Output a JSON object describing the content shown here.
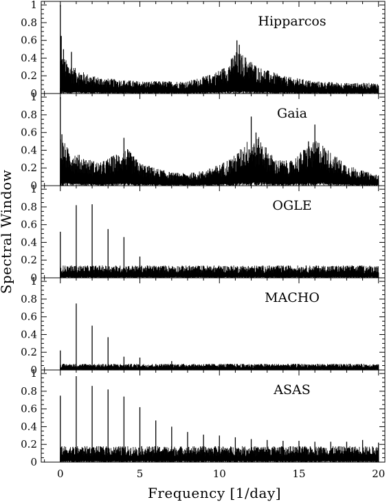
{
  "chart_data": {
    "type": "line",
    "xlabel": "Frequency [1/day]",
    "ylabel": "Spectral Window",
    "xlim": [
      -1.2,
      20.4
    ],
    "ylim": [
      0,
      1.04
    ],
    "x_ticks": [
      "0",
      "5",
      "10",
      "15",
      "20"
    ],
    "y_ticks": [
      "0",
      "0.2",
      "0.4",
      "0.6",
      "0.8",
      "1"
    ],
    "grid": false,
    "line_color": "#000000",
    "panels": [
      {
        "name": "Hipparcos",
        "peaks": [
          {
            "x": 0.0,
            "y": 1.0
          },
          {
            "x": 0.06,
            "y": 0.65
          },
          {
            "x": 0.2,
            "y": 0.5
          },
          {
            "x": 0.7,
            "y": 0.47
          },
          {
            "x": 11.1,
            "y": 0.6
          },
          {
            "x": 11.25,
            "y": 0.55
          }
        ],
        "envelope": [
          [
            0.05,
            0.45
          ],
          [
            0.5,
            0.35
          ],
          [
            1,
            0.28
          ],
          [
            2,
            0.2
          ],
          [
            3,
            0.17
          ],
          [
            5,
            0.14
          ],
          [
            8,
            0.14
          ],
          [
            9.5,
            0.22
          ],
          [
            10.5,
            0.32
          ],
          [
            11.0,
            0.48
          ],
          [
            11.5,
            0.44
          ],
          [
            12.5,
            0.3
          ],
          [
            14,
            0.2
          ],
          [
            16,
            0.14
          ],
          [
            18,
            0.12
          ],
          [
            20,
            0.12
          ]
        ]
      },
      {
        "name": "Gaia",
        "peaks": [
          {
            "x": 0.0,
            "y": 1.0
          },
          {
            "x": 0.1,
            "y": 0.58
          },
          {
            "x": 4.0,
            "y": 0.54
          },
          {
            "x": 12.0,
            "y": 0.78
          },
          {
            "x": 12.3,
            "y": 0.6
          },
          {
            "x": 16.0,
            "y": 0.69
          },
          {
            "x": 15.6,
            "y": 0.5
          }
        ],
        "envelope": [
          [
            0.05,
            0.55
          ],
          [
            0.5,
            0.42
          ],
          [
            1.5,
            0.32
          ],
          [
            2.5,
            0.26
          ],
          [
            3.5,
            0.36
          ],
          [
            4.2,
            0.42
          ],
          [
            5,
            0.26
          ],
          [
            6,
            0.2
          ],
          [
            7,
            0.15
          ],
          [
            8,
            0.14
          ],
          [
            9,
            0.17
          ],
          [
            10,
            0.24
          ],
          [
            11,
            0.35
          ],
          [
            11.8,
            0.52
          ],
          [
            12.5,
            0.55
          ],
          [
            13.5,
            0.3
          ],
          [
            14.5,
            0.28
          ],
          [
            15.5,
            0.45
          ],
          [
            16.2,
            0.52
          ],
          [
            17,
            0.38
          ],
          [
            18,
            0.24
          ],
          [
            19,
            0.17
          ],
          [
            20,
            0.12
          ]
        ]
      },
      {
        "name": "OGLE",
        "peaks": [
          {
            "x": 0.0,
            "y": 0.52
          },
          {
            "x": 1.0,
            "y": 0.82
          },
          {
            "x": 2.0,
            "y": 0.83
          },
          {
            "x": 3.0,
            "y": 0.55
          },
          {
            "x": 4.0,
            "y": 0.46
          },
          {
            "x": 5.0,
            "y": 0.24
          }
        ],
        "envelope": [
          [
            0,
            0.14
          ],
          [
            20,
            0.14
          ]
        ]
      },
      {
        "name": "MACHO",
        "peaks": [
          {
            "x": 0.0,
            "y": 0.22
          },
          {
            "x": 1.0,
            "y": 0.75
          },
          {
            "x": 2.0,
            "y": 0.5
          },
          {
            "x": 3.0,
            "y": 0.37
          },
          {
            "x": 4.0,
            "y": 0.15
          },
          {
            "x": 5.0,
            "y": 0.14
          },
          {
            "x": 7.0,
            "y": 0.1
          }
        ],
        "envelope": [
          [
            0,
            0.07
          ],
          [
            20,
            0.07
          ]
        ]
      },
      {
        "name": "ASAS",
        "peaks": [
          {
            "x": 0.0,
            "y": 0.75
          },
          {
            "x": 1.0,
            "y": 0.97
          },
          {
            "x": 2.0,
            "y": 0.86
          },
          {
            "x": 3.0,
            "y": 0.82
          },
          {
            "x": 4.0,
            "y": 0.74
          },
          {
            "x": 5.0,
            "y": 0.62
          },
          {
            "x": 6.0,
            "y": 0.47
          },
          {
            "x": 7.0,
            "y": 0.4
          },
          {
            "x": 8.0,
            "y": 0.34
          },
          {
            "x": 9.0,
            "y": 0.31
          },
          {
            "x": 10.0,
            "y": 0.3
          },
          {
            "x": 11.0,
            "y": 0.28
          },
          {
            "x": 12.0,
            "y": 0.26
          },
          {
            "x": 13.0,
            "y": 0.25
          },
          {
            "x": 14.0,
            "y": 0.24
          },
          {
            "x": 15.0,
            "y": 0.24
          },
          {
            "x": 16.0,
            "y": 0.23
          },
          {
            "x": 17.0,
            "y": 0.23
          },
          {
            "x": 18.0,
            "y": 0.23
          },
          {
            "x": 19.0,
            "y": 0.25
          },
          {
            "x": 20.0,
            "y": 0.22
          }
        ],
        "envelope": [
          [
            0,
            0.18
          ],
          [
            20,
            0.18
          ]
        ]
      }
    ]
  }
}
